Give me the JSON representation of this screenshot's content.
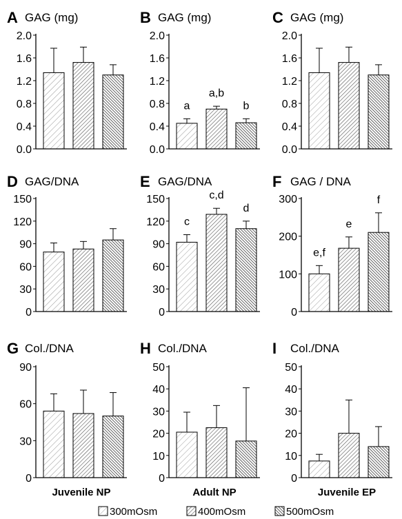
{
  "chart_data": [
    {
      "type": "bar",
      "panel_letter": "A",
      "title": "GAG (mg)",
      "categories": [
        "300mOsm",
        "400mOsm",
        "500mOsm"
      ],
      "values": [
        1.34,
        1.52,
        1.3
      ],
      "error": [
        0.43,
        0.27,
        0.18
      ],
      "annotations": [
        "",
        "",
        ""
      ],
      "ylim": [
        0,
        2.0
      ],
      "yticks": [
        "0.0",
        "0.4",
        "0.8",
        "1.2",
        "1.6",
        "2.0"
      ],
      "xlabel": ""
    },
    {
      "type": "bar",
      "panel_letter": "B",
      "title": "GAG (mg)",
      "categories": [
        "300mOsm",
        "400mOsm",
        "500mOsm"
      ],
      "values": [
        0.45,
        0.7,
        0.46
      ],
      "error": [
        0.08,
        0.05,
        0.07
      ],
      "annotations": [
        "a",
        "a,b",
        "b"
      ],
      "ylim": [
        0,
        2.0
      ],
      "yticks": [
        "0.0",
        "0.4",
        "0.8",
        "1.2",
        "1.6",
        "2.0"
      ],
      "xlabel": ""
    },
    {
      "type": "bar",
      "panel_letter": "C",
      "title": "GAG (mg)",
      "categories": [
        "300mOsm",
        "400mOsm",
        "500mOsm"
      ],
      "values": [
        1.34,
        1.52,
        1.3
      ],
      "error": [
        0.43,
        0.27,
        0.18
      ],
      "annotations": [
        "",
        "",
        ""
      ],
      "ylim": [
        0,
        2.0
      ],
      "yticks": [
        "0.0",
        "0.4",
        "0.8",
        "1.2",
        "1.6",
        "2.0"
      ],
      "xlabel": ""
    },
    {
      "type": "bar",
      "panel_letter": "D",
      "title": "GAG/DNA",
      "categories": [
        "300mOsm",
        "400mOsm",
        "500mOsm"
      ],
      "values": [
        79,
        83,
        95
      ],
      "error": [
        12,
        10,
        15
      ],
      "annotations": [
        "",
        "",
        ""
      ],
      "ylim": [
        0,
        150
      ],
      "yticks": [
        "0",
        "30",
        "60",
        "90",
        "120",
        "150"
      ],
      "xlabel": ""
    },
    {
      "type": "bar",
      "panel_letter": "E",
      "title": "GAG/DNA",
      "categories": [
        "300mOsm",
        "400mOsm",
        "500mOsm"
      ],
      "values": [
        92,
        129,
        110
      ],
      "error": [
        10,
        8,
        10
      ],
      "annotations": [
        "c",
        "c,d",
        "d"
      ],
      "ylim": [
        0,
        150
      ],
      "yticks": [
        "0",
        "30",
        "60",
        "90",
        "120",
        "150"
      ],
      "xlabel": ""
    },
    {
      "type": "bar",
      "panel_letter": "F",
      "title": "GAG / DNA",
      "categories": [
        "300mOsm",
        "400mOsm",
        "500mOsm"
      ],
      "values": [
        100,
        168,
        210
      ],
      "error": [
        22,
        30,
        52
      ],
      "annotations": [
        "e,f",
        "e",
        "f"
      ],
      "ylim": [
        0,
        300
      ],
      "yticks": [
        "0",
        "100",
        "200",
        "300"
      ],
      "xlabel": ""
    },
    {
      "type": "bar",
      "panel_letter": "G",
      "title": "Col./DNA",
      "categories": [
        "300mOsm",
        "400mOsm",
        "500mOsm"
      ],
      "values": [
        54,
        52,
        50
      ],
      "error": [
        14,
        19,
        19
      ],
      "annotations": [
        "",
        "",
        ""
      ],
      "ylim": [
        0,
        90
      ],
      "yticks": [
        "0",
        "30",
        "60",
        "90"
      ],
      "xlabel": "Juvenile NP"
    },
    {
      "type": "bar",
      "panel_letter": "H",
      "title": "Col./DNA",
      "categories": [
        "300mOsm",
        "400mOsm",
        "500mOsm"
      ],
      "values": [
        20.5,
        22.5,
        16.5
      ],
      "error": [
        9,
        10,
        24
      ],
      "annotations": [
        "",
        "",
        ""
      ],
      "ylim": [
        0,
        50
      ],
      "yticks": [
        "0",
        "10",
        "20",
        "30",
        "40",
        "50"
      ],
      "xlabel": "Adult NP"
    },
    {
      "type": "bar",
      "panel_letter": "I",
      "title": "Col./DNA",
      "categories": [
        "300mOsm",
        "400mOsm",
        "500mOsm"
      ],
      "values": [
        7.5,
        20,
        14
      ],
      "error": [
        3,
        15,
        9
      ],
      "annotations": [
        "",
        "",
        ""
      ],
      "ylim": [
        0,
        50
      ],
      "yticks": [
        "0",
        "10",
        "20",
        "30",
        "40",
        "50"
      ],
      "xlabel": "Juvenile EP"
    }
  ],
  "legend": {
    "position": "bottom",
    "items": [
      {
        "label": "300mOsm",
        "pattern": "light-diagonal"
      },
      {
        "label": "400mOsm",
        "pattern": "medium-diagonal"
      },
      {
        "label": "500mOsm",
        "pattern": "dense-diagonal"
      }
    ]
  },
  "colors": {
    "axis": "#000000",
    "bar_fill": "#ffffff",
    "hatch_light": "#9a9a9a",
    "hatch_medium": "#555555",
    "hatch_dense": "#222222"
  }
}
